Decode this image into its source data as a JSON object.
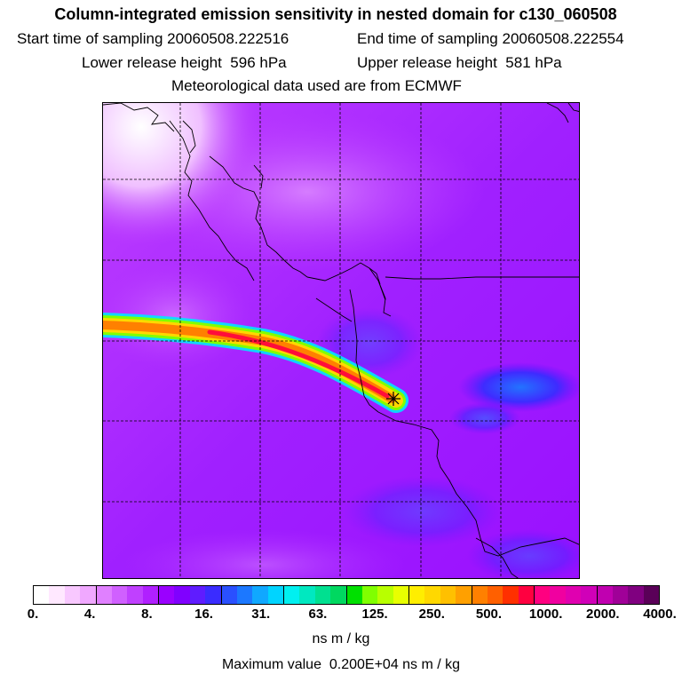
{
  "title": "Column-integrated emission sensitivity in nested domain for c130_060508",
  "start_label": "Start time of sampling",
  "start_value": "20060508.222516",
  "end_label": "End time of sampling",
  "end_value": "20060508.222554",
  "lower_label": "Lower release height",
  "lower_value": "596 hPa",
  "upper_label": "Upper release height",
  "upper_value": "581 hPa",
  "met_line": "Meteorological data used are from ECMWF",
  "colorbar": {
    "tick_labels": [
      "0.",
      "4.",
      "8.",
      "16.",
      "31.",
      "63.",
      "125.",
      "250.",
      "500.",
      "1000.",
      "2000.",
      "4000."
    ],
    "colors": [
      "#ffffff",
      "#ffe8ff",
      "#f8c8ff",
      "#f0a8ff",
      "#e080ff",
      "#d060ff",
      "#c040ff",
      "#b020ff",
      "#9a00ff",
      "#8000ff",
      "#5f1cff",
      "#3a2cff",
      "#2a50ff",
      "#1c78ff",
      "#10a8ff",
      "#00d4ff",
      "#00f0f0",
      "#00e8c0",
      "#00e090",
      "#00d860",
      "#00e000",
      "#80ff00",
      "#b8ff00",
      "#e8ff00",
      "#ffee00",
      "#ffd800",
      "#ffc000",
      "#ffa000",
      "#ff8000",
      "#ff6000",
      "#ff3000",
      "#ff0040",
      "#ff0080",
      "#f000a0",
      "#e000b0",
      "#d000b8",
      "#c000b0",
      "#a00098",
      "#800080",
      "#5a0058"
    ]
  },
  "unit": "ns m / kg",
  "max_label": "Maximum value",
  "max_value": "0.200E+04 ns m / kg"
}
